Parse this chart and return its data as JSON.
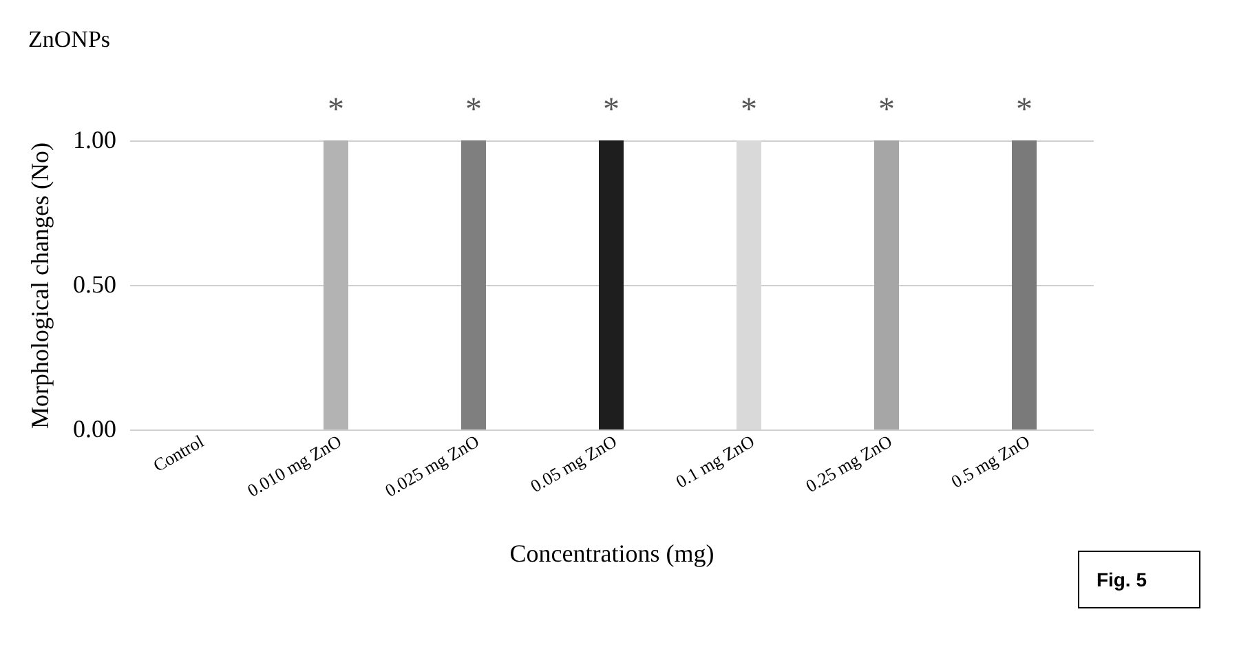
{
  "chart_data": {
    "type": "bar",
    "title": "ZnONPs",
    "xlabel": "Concentrations (mg)",
    "ylabel": "Morphological changes (No)",
    "categories": [
      "Control",
      "0.010 mg ZnO",
      "0.025 mg ZnO",
      "0.05 mg ZnO",
      "0.1 mg ZnO",
      "0.25 mg ZnO",
      "0.5 mg ZnO"
    ],
    "values": [
      0,
      1,
      1,
      1,
      1,
      1,
      1
    ],
    "colors": [
      "#404040",
      "#b3b3b3",
      "#7f7f7f",
      "#1e1e1e",
      "#d9d9d9",
      "#a6a6a6",
      "#7a7a7a"
    ],
    "ylim": [
      0,
      1
    ],
    "yticks": [
      {
        "value": 0,
        "label": "0.00"
      },
      {
        "value": 0.5,
        "label": "0.50"
      },
      {
        "value": 1,
        "label": "1.00"
      }
    ],
    "grid": "y",
    "annotations": [
      {
        "text": "*",
        "x": "0.010 mg ZnO",
        "y": 1
      },
      {
        "text": "*",
        "x": "0.025 mg ZnO",
        "y": 1
      },
      {
        "text": "*",
        "x": "0.05 mg ZnO",
        "y": 1
      },
      {
        "text": "*",
        "x": "0.1 mg ZnO",
        "y": 1
      },
      {
        "text": "*",
        "x": "0.25 mg ZnO",
        "y": 1
      },
      {
        "text": "*",
        "x": "0.5 mg ZnO",
        "y": 1
      },
      "Fig. 5"
    ]
  }
}
